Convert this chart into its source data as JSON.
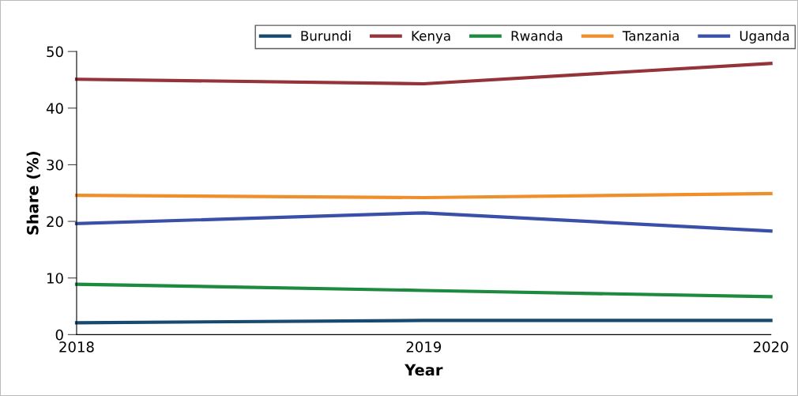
{
  "chart_data": {
    "type": "line",
    "xlabel": "Year",
    "ylabel": "Share (%)",
    "x": [
      2018,
      2019,
      2020
    ],
    "xlim": [
      2018,
      2020
    ],
    "xticks": [
      2018,
      2019,
      2020
    ],
    "ylim": [
      0,
      50
    ],
    "yticks": [
      0,
      10,
      20,
      30,
      40,
      50
    ],
    "grid": false,
    "legend": "top right",
    "marker": "none",
    "line_style": "solid",
    "series": [
      {
        "name": "Burundi",
        "color": "#174a6e",
        "values": [
          2.1,
          2.5,
          2.5
        ]
      },
      {
        "name": "Kenya",
        "color": "#95333b",
        "values": [
          45.1,
          44.3,
          47.9
        ]
      },
      {
        "name": "Rwanda",
        "color": "#1d8a40",
        "values": [
          8.9,
          7.8,
          6.7
        ]
      },
      {
        "name": "Tanzania",
        "color": "#ef8f2c",
        "values": [
          24.6,
          24.2,
          24.9
        ]
      },
      {
        "name": "Uganda",
        "color": "#3a50a8",
        "values": [
          19.6,
          21.5,
          18.3
        ]
      }
    ]
  }
}
